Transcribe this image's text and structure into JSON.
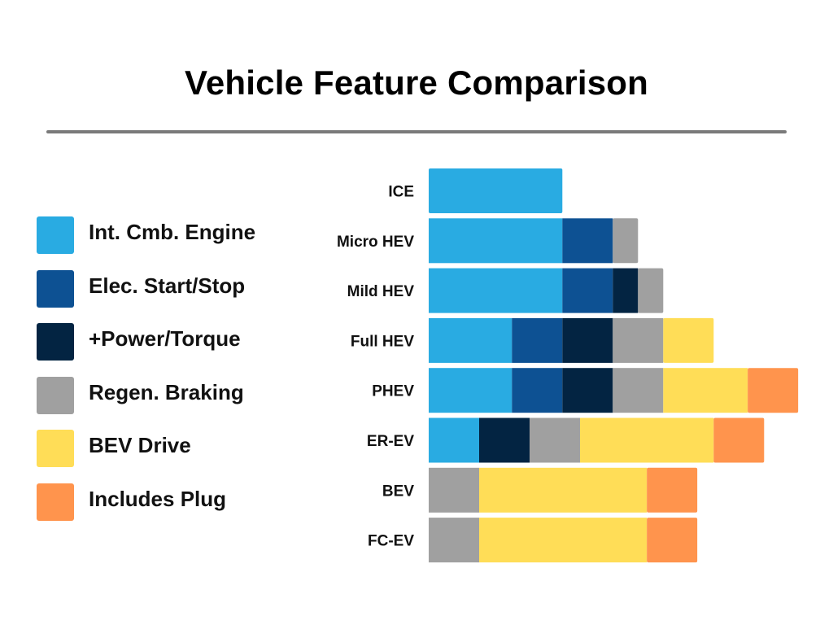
{
  "title": "Vehicle Feature Comparison",
  "legend": [
    {
      "label": "Int. Cmb. Engine",
      "color": "#29ABE2"
    },
    {
      "label": "Elec. Start/Stop",
      "color": "#0D5193"
    },
    {
      "label": "+Power/Torque",
      "color": "#032442"
    },
    {
      "label": "Regen. Braking",
      "color": "#A0A0A0"
    },
    {
      "label": "BEV Drive",
      "color": "#FFDD57"
    },
    {
      "label": "Includes Plug",
      "color": "#FF944D"
    }
  ],
  "chart_data": {
    "type": "bar",
    "orientation": "horizontal",
    "stacked": true,
    "title": "Vehicle Feature Comparison",
    "categories": [
      "ICE",
      "Micro HEV",
      "Mild HEV",
      "Full HEV",
      "PHEV",
      "ER-EV",
      "BEV",
      "FC-EV"
    ],
    "segments": [
      [
        {
          "feature": "Int. Cmb. Engine",
          "value": 5.3
        }
      ],
      [
        {
          "feature": "Int. Cmb. Engine",
          "value": 5.3
        },
        {
          "feature": "Elec. Start/Stop",
          "value": 2
        },
        {
          "feature": "Regen. Braking",
          "value": 1
        }
      ],
      [
        {
          "feature": "Int. Cmb. Engine",
          "value": 5.3
        },
        {
          "feature": "Elec. Start/Stop",
          "value": 2
        },
        {
          "feature": "+Power/Torque",
          "value": 1
        },
        {
          "feature": "Regen. Braking",
          "value": 1
        }
      ],
      [
        {
          "feature": "Int. Cmb. Engine",
          "value": 3.3
        },
        {
          "feature": "Elec. Start/Stop",
          "value": 2
        },
        {
          "feature": "+Power/Torque",
          "value": 2
        },
        {
          "feature": "Regen. Braking",
          "value": 2
        },
        {
          "feature": "BEV Drive",
          "value": 2
        }
      ],
      [
        {
          "feature": "Int. Cmb. Engine",
          "value": 3.3
        },
        {
          "feature": "Elec. Start/Stop",
          "value": 2
        },
        {
          "feature": "+Power/Torque",
          "value": 2
        },
        {
          "feature": "Regen. Braking",
          "value": 2
        },
        {
          "feature": "BEV Drive",
          "value": 3.35
        },
        {
          "feature": "Includes Plug",
          "value": 2
        }
      ],
      [
        {
          "feature": "Int. Cmb. Engine",
          "value": 2
        },
        {
          "feature": "+Power/Torque",
          "value": 2
        },
        {
          "feature": "Regen. Braking",
          "value": 2
        },
        {
          "feature": "BEV Drive",
          "value": 5.3
        },
        {
          "feature": "Includes Plug",
          "value": 2
        }
      ],
      [
        {
          "feature": "Regen. Braking",
          "value": 2
        },
        {
          "feature": "BEV Drive",
          "value": 6.65
        },
        {
          "feature": "Includes Plug",
          "value": 2
        }
      ],
      [
        {
          "feature": "Regen. Braking",
          "value": 2
        },
        {
          "feature": "BEV Drive",
          "value": 6.65
        },
        {
          "feature": "Includes Plug",
          "value": 2
        }
      ]
    ],
    "xlim": [
      0,
      14.65
    ],
    "grid": false,
    "legend_position": "left"
  }
}
